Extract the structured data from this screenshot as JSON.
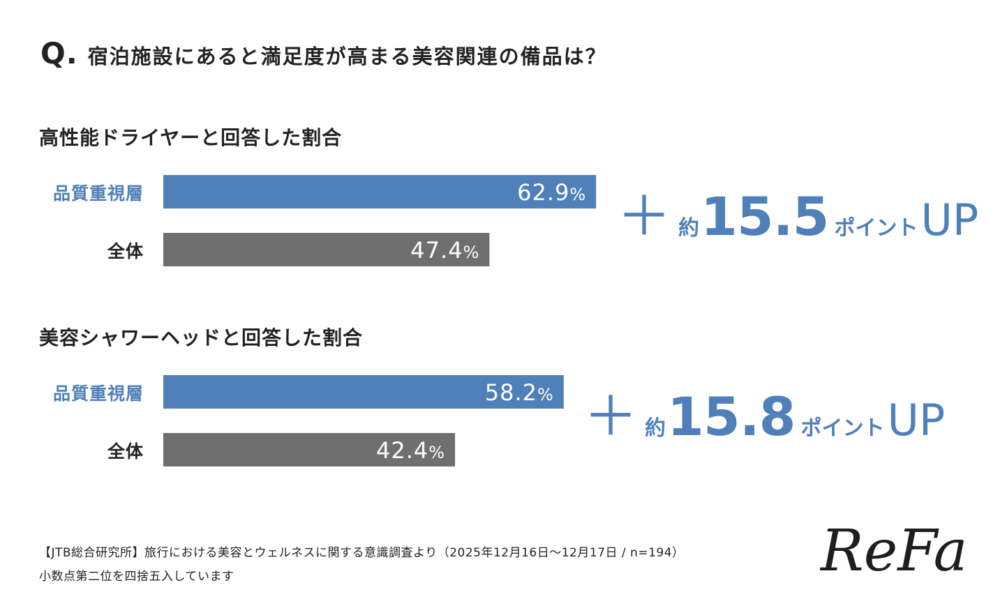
{
  "question": {
    "mark": "Q.",
    "text": "宿泊施設にあると満足度が高まる美容関連の備品は？"
  },
  "colors": {
    "quality": "#4f80b9",
    "overall": "#706f6f",
    "accent": "#4f80b9"
  },
  "chart_data": [
    {
      "type": "bar",
      "title": "高性能ドライヤーと回答した割合",
      "categories": [
        "品質重視層",
        "全体"
      ],
      "values": [
        62.9,
        47.4
      ],
      "unit": "%",
      "xlim": [
        0,
        100
      ],
      "difference": {
        "prefix": "＋",
        "approx": "約",
        "value": "15.5",
        "unit": "ポイント",
        "suffix": "UP"
      }
    },
    {
      "type": "bar",
      "title": "美容シャワーヘッドと回答した割合",
      "categories": [
        "品質重視層",
        "全体"
      ],
      "values": [
        58.2,
        42.4
      ],
      "unit": "%",
      "xlim": [
        0,
        100
      ],
      "difference": {
        "prefix": "＋",
        "approx": "約",
        "value": "15.8",
        "unit": "ポイント",
        "suffix": "UP"
      }
    }
  ],
  "footnotes": [
    "【JTB総合研究所】旅行における美容とウェルネスに関する意識調査より（2025年12月16日〜12月17日 / n=194）",
    "小数点第二位を四捨五入しています"
  ],
  "logo": {
    "text": "ReFa"
  }
}
